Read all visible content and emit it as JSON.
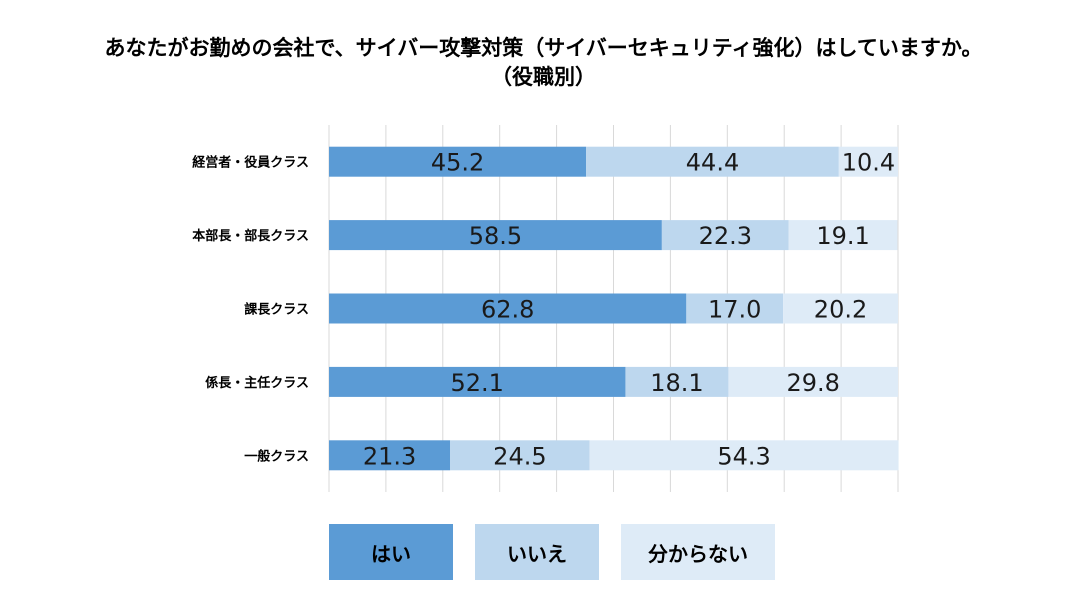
{
  "chart_data": {
    "type": "bar",
    "orientation": "horizontal",
    "stacked": true,
    "title": "あなたがお勤めの会社で、サイバー攻撃対策（サイバーセキュリティ強化）はしていますか。",
    "subtitle": "（役職別）",
    "categories": [
      "経営者・役員クラス",
      "本部長・部長クラス",
      "課長クラス",
      "係長・主任クラス",
      "一般クラス"
    ],
    "series": [
      {
        "name": "はい",
        "color": "#5b9bd5",
        "values": [
          45.2,
          58.5,
          62.8,
          52.1,
          21.3
        ]
      },
      {
        "name": "いいえ",
        "color": "#bdd7ee",
        "values": [
          44.4,
          22.3,
          17.0,
          18.1,
          24.5
        ]
      },
      {
        "name": "分からない",
        "color": "#deebf7",
        "values": [
          10.4,
          19.1,
          20.2,
          29.8,
          54.3
        ]
      }
    ],
    "xlim": [
      0,
      100
    ],
    "grid": true,
    "legend_position": "bottom"
  }
}
